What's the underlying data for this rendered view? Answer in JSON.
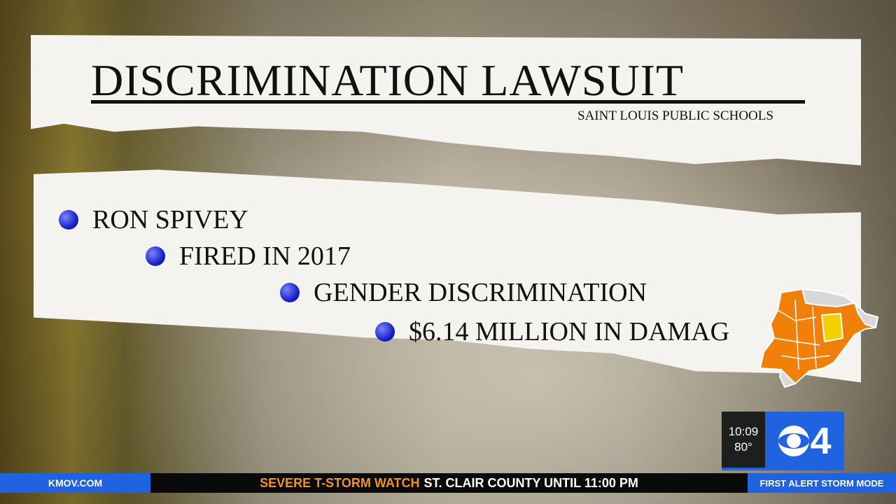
{
  "graphic": {
    "title": "DISCRIMINATION LAWSUIT",
    "subtitle": "SAINT LOUIS PUBLIC SCHOOLS",
    "bullets": [
      "RON SPIVEY",
      "FIRED IN 2017",
      "GENDER DISCRIMINATION",
      "$6.14 MILLION IN DAMAG"
    ]
  },
  "map": {
    "icon": "county-watch-map",
    "highlight_color": "#f0800a",
    "selected_color": "#f5d000"
  },
  "bug": {
    "time": "10:09",
    "temperature": "80°",
    "logo": "CBS 4",
    "logo_digit": "4"
  },
  "ticker": {
    "left": "KMOV.COM",
    "alert": "SEVERE T-STORM WATCH",
    "message": "ST. CLAIR COUNTY UNTIL 11:00 PM",
    "right": "FIRST ALERT STORM MODE"
  },
  "colors": {
    "brand_blue": "#1f63e0",
    "alert_orange": "#f0922a"
  }
}
